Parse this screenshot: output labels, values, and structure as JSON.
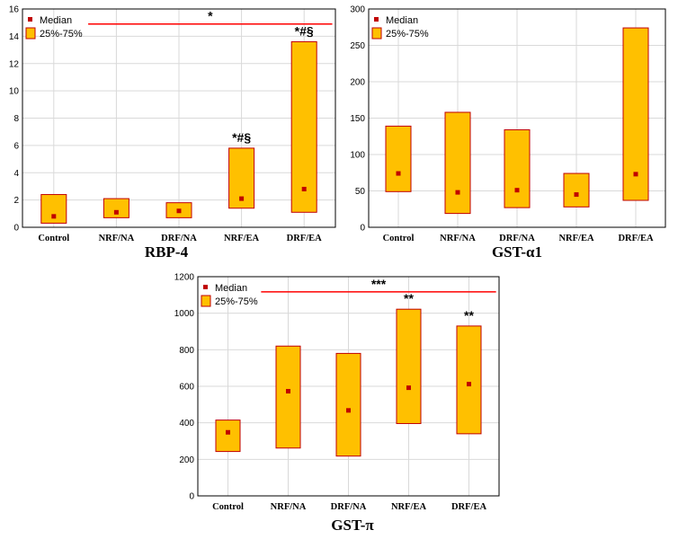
{
  "legend": {
    "median_label": "Median",
    "range_label": "25%-75%"
  },
  "colors": {
    "box_fill": "#ffc000",
    "box_edge": "#c00000",
    "median": "#c00000",
    "sig_line": "#ff0000"
  },
  "chart_data": [
    {
      "type": "box",
      "title": "RBP-4",
      "categories": [
        "Control",
        "NRF/NA",
        "DRF/NA",
        "NRF/EA",
        "DRF/EA"
      ],
      "q1": [
        0.3,
        0.7,
        0.7,
        1.4,
        1.1
      ],
      "q3": [
        2.4,
        2.1,
        1.8,
        5.8,
        13.6
      ],
      "median": [
        0.8,
        1.1,
        1.2,
        2.1,
        2.8
      ],
      "annotations": [
        "",
        "",
        "",
        "*#§",
        "*#§"
      ],
      "yticks": [
        0,
        2,
        4,
        6,
        8,
        10,
        12,
        14,
        16
      ],
      "ylim": [
        0,
        16
      ],
      "bracket": {
        "label": "*",
        "value": 14.9,
        "from": 1,
        "to": 4
      }
    },
    {
      "type": "box",
      "title": "GST-α1",
      "categories": [
        "Control",
        "NRF/NA",
        "DRF/NA",
        "NRF/EA",
        "DRF/EA"
      ],
      "q1": [
        49,
        19,
        27,
        28,
        37
      ],
      "q3": [
        139,
        158,
        134,
        74,
        274
      ],
      "median": [
        74,
        48,
        51,
        45,
        73
      ],
      "annotations": [
        "",
        "",
        "",
        "",
        ""
      ],
      "yticks": [
        0,
        50,
        100,
        150,
        200,
        250,
        300
      ],
      "ylim": [
        0,
        300
      ],
      "bracket": null
    },
    {
      "type": "box",
      "title": "GST-π",
      "categories": [
        "Control",
        "NRF/NA",
        "DRF/NA",
        "NRF/EA",
        "DRF/EA"
      ],
      "q1": [
        243,
        262,
        218,
        396,
        340
      ],
      "q3": [
        415,
        820,
        780,
        1022,
        930
      ],
      "median": [
        348,
        573,
        468,
        592,
        612
      ],
      "annotations": [
        "",
        "",
        "",
        "**",
        "**"
      ],
      "yticks": [
        0,
        200,
        400,
        600,
        800,
        1000,
        1200
      ],
      "ylim": [
        0,
        1200
      ],
      "bracket": {
        "label": "***",
        "value": 1117,
        "from": 1,
        "to": 4
      }
    }
  ]
}
